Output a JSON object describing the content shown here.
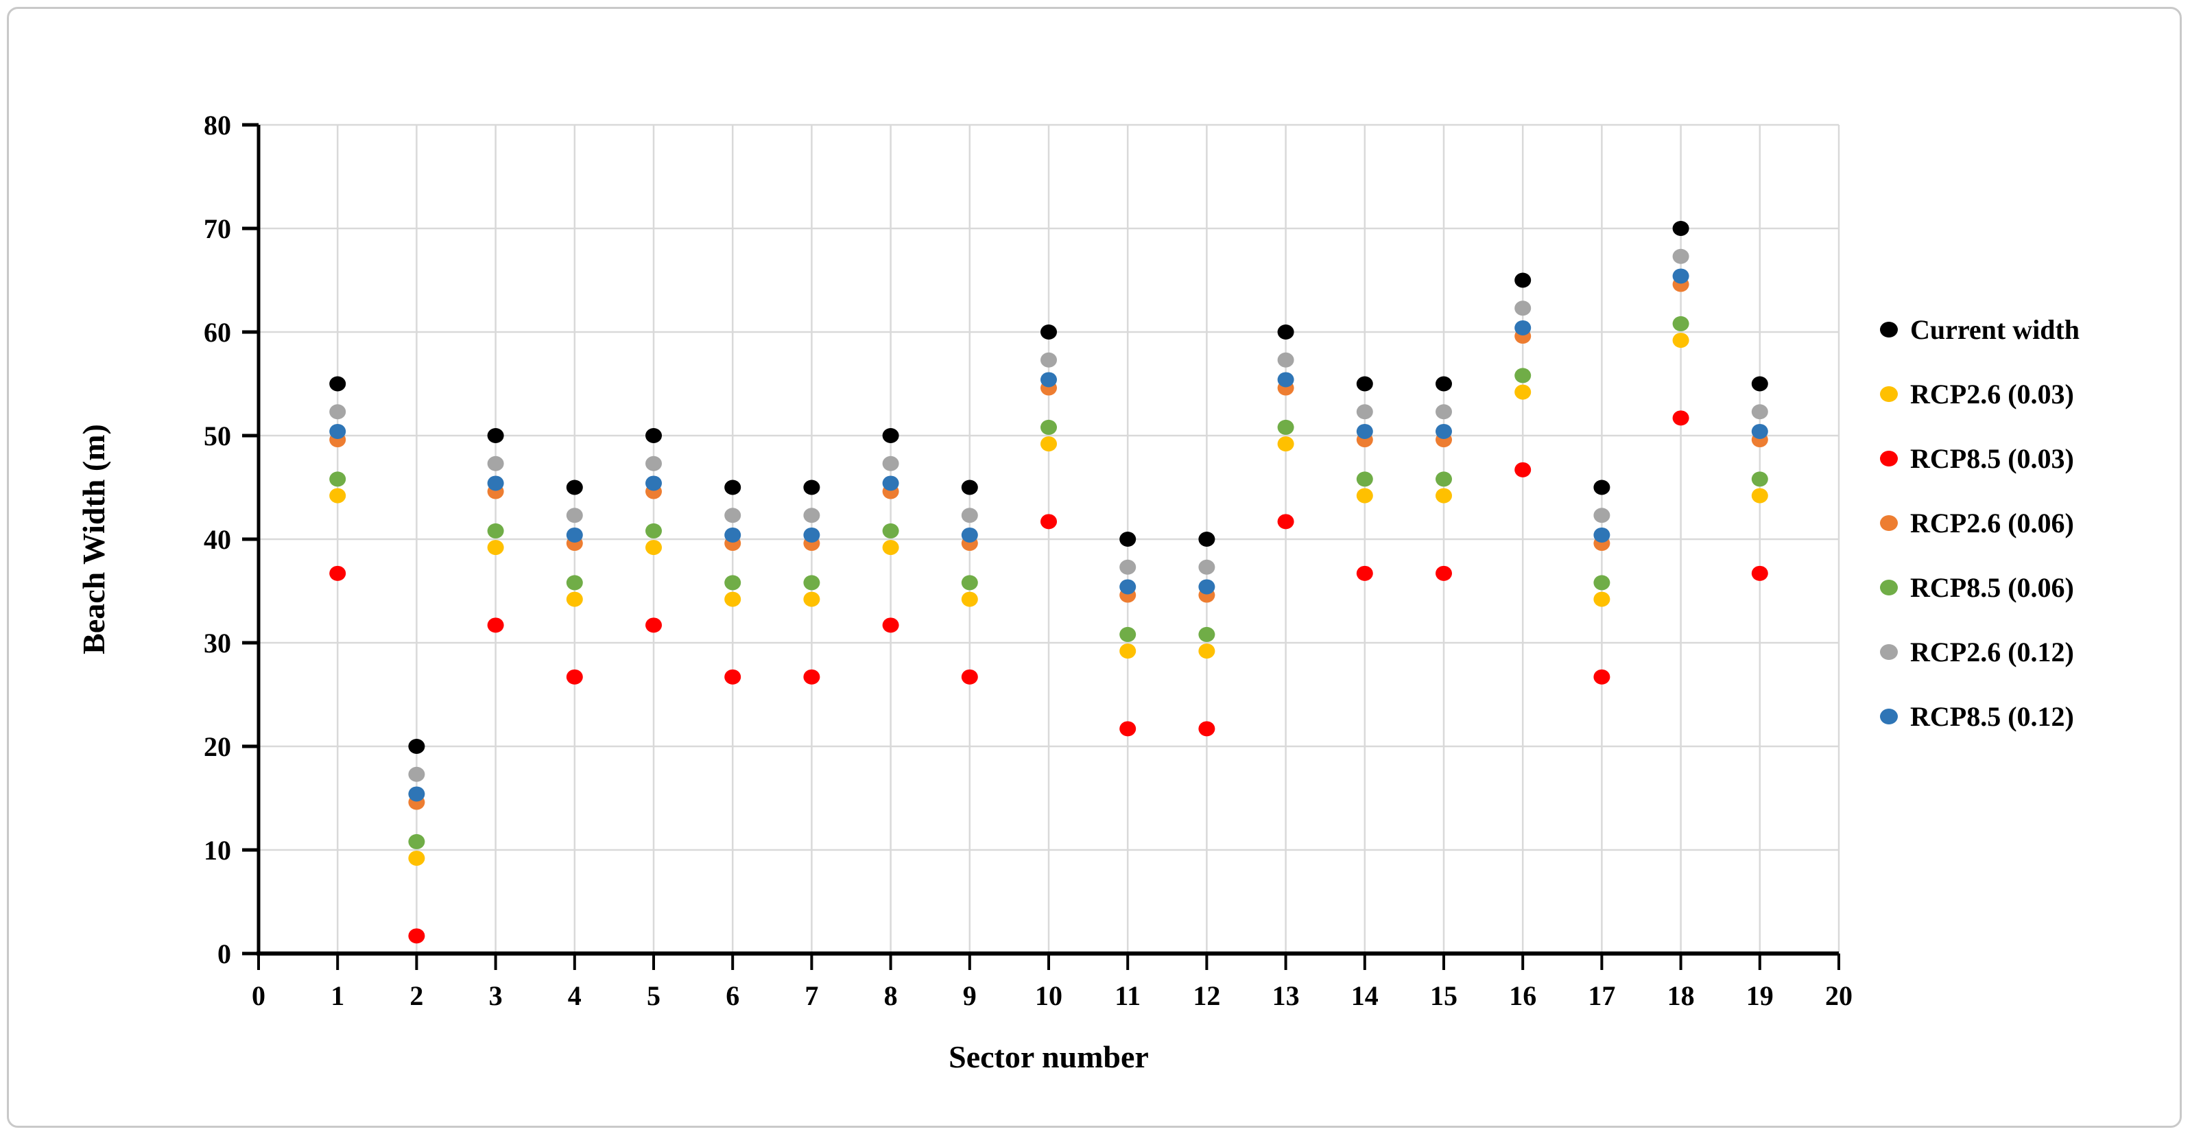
{
  "figure": {
    "background": "#FFFFFF",
    "border_color": "#C9C9C9",
    "gridline_color": "#D9D9D9",
    "axis_color": "#000000"
  },
  "chart_data": {
    "type": "scatter",
    "title": "",
    "xlabel": "Sector number",
    "ylabel": "Beach Width (m)",
    "xlim": [
      0,
      20
    ],
    "ylim": [
      0,
      80
    ],
    "x_ticks": [
      0,
      1,
      2,
      3,
      4,
      5,
      6,
      7,
      8,
      9,
      10,
      11,
      12,
      13,
      14,
      15,
      16,
      17,
      18,
      19,
      20
    ],
    "y_ticks": [
      0,
      10,
      20,
      30,
      40,
      50,
      60,
      70,
      80
    ],
    "grid": true,
    "legend_position": "right",
    "categories": [
      1,
      2,
      3,
      4,
      5,
      6,
      7,
      8,
      9,
      10,
      11,
      12,
      13,
      14,
      15,
      16,
      17,
      18,
      19
    ],
    "series": [
      {
        "name": "Current width",
        "color": "#000000",
        "values": [
          55,
          20,
          50,
          45,
          50,
          45,
          45,
          50,
          45,
          60,
          40,
          40,
          60,
          55,
          55,
          65,
          45,
          70,
          55
        ]
      },
      {
        "name": "RCP2.6 (0.03)",
        "color": "#FFC000",
        "values": [
          44.2,
          9.2,
          39.2,
          34.2,
          39.2,
          34.2,
          34.2,
          39.2,
          34.2,
          49.2,
          29.2,
          29.2,
          49.2,
          44.2,
          44.2,
          54.2,
          34.2,
          59.2,
          44.2
        ]
      },
      {
        "name": "RCP8.5 (0.03)",
        "color": "#FF0000",
        "values": [
          36.7,
          1.7,
          31.7,
          26.7,
          31.7,
          26.7,
          26.7,
          31.7,
          26.7,
          41.7,
          21.7,
          21.7,
          41.7,
          36.7,
          36.7,
          46.7,
          26.7,
          51.7,
          36.7
        ]
      },
      {
        "name": "RCP2.6 (0.06)",
        "color": "#ED7D31",
        "values": [
          49.6,
          14.6,
          44.6,
          39.6,
          44.6,
          39.6,
          39.6,
          44.6,
          39.6,
          54.6,
          34.6,
          34.6,
          54.6,
          49.6,
          49.6,
          59.6,
          39.6,
          64.6,
          49.6
        ]
      },
      {
        "name": "RCP8.5 (0.06)",
        "color": "#70AD47",
        "values": [
          45.8,
          10.8,
          40.8,
          35.8,
          40.8,
          35.8,
          35.8,
          40.8,
          35.8,
          50.8,
          30.8,
          30.8,
          50.8,
          45.8,
          45.8,
          55.8,
          35.8,
          60.8,
          45.8
        ]
      },
      {
        "name": "RCP2.6 (0.12)",
        "color": "#A5A5A5",
        "values": [
          52.3,
          17.3,
          47.3,
          42.3,
          47.3,
          42.3,
          42.3,
          47.3,
          42.3,
          57.3,
          37.3,
          37.3,
          57.3,
          52.3,
          52.3,
          62.3,
          42.3,
          67.3,
          52.3
        ]
      },
      {
        "name": "RCP8.5 (0.12)",
        "color": "#2E75B6",
        "values": [
          50.4,
          15.4,
          45.4,
          40.4,
          45.4,
          40.4,
          40.4,
          45.4,
          40.4,
          55.4,
          35.4,
          35.4,
          55.4,
          50.4,
          50.4,
          60.4,
          40.4,
          65.4,
          50.4
        ]
      }
    ]
  }
}
